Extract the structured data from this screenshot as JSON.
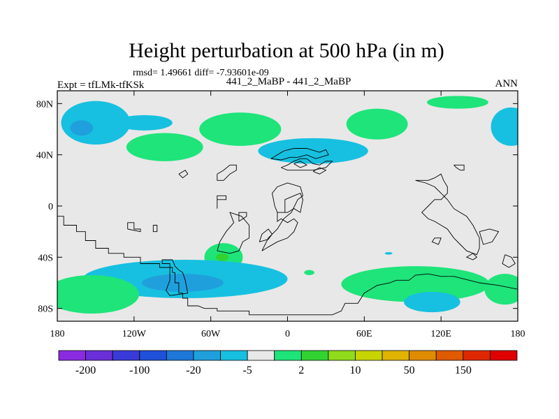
{
  "chart_data": {
    "type": "contour_map",
    "title": "Height perturbation at 500 hPa (in m)",
    "stats": "rmsd= 1.49661 diff= -7.93601e-09",
    "left_label": "Expt = tfLMk-tfKSk",
    "center_label": "441_2_MaBP - 441_2_MaBP",
    "right_label": "ANN",
    "x_ticks": [
      {
        "value": -180,
        "label": "180"
      },
      {
        "value": -120,
        "label": "120W"
      },
      {
        "value": -60,
        "label": "60W"
      },
      {
        "value": 0,
        "label": "0"
      },
      {
        "value": 60,
        "label": "60E"
      },
      {
        "value": 120,
        "label": "120E"
      },
      {
        "value": 180,
        "label": "180"
      }
    ],
    "y_ticks": [
      {
        "value": 80,
        "label": "80N"
      },
      {
        "value": 40,
        "label": "40N"
      },
      {
        "value": 0,
        "label": "0"
      },
      {
        "value": -40,
        "label": "40S"
      },
      {
        "value": -80,
        "label": "80S"
      }
    ],
    "xlim": [
      -180,
      180
    ],
    "ylim": [
      -90,
      90
    ],
    "colorbar": {
      "colors": [
        "#8a2be2",
        "#6a2fd8",
        "#3a3ad8",
        "#1f50d8",
        "#1d78d8",
        "#1fa0dc",
        "#17c0e0",
        "#e8e8e8",
        "#1ee47a",
        "#32d232",
        "#90dc1c",
        "#c8d400",
        "#e0b400",
        "#e08c00",
        "#e05a00",
        "#e02800",
        "#e00000"
      ],
      "labels": [
        "-200",
        "-100",
        "-20",
        "-5",
        "2",
        "10",
        "50",
        "150"
      ]
    },
    "blobs": [
      {
        "lon": -150,
        "lat": 65,
        "rlon": 27,
        "rlat": 17,
        "color": "#17c0e0"
      },
      {
        "lon": -161,
        "lat": 61,
        "rlon": 9,
        "rlat": 6,
        "color": "#1fa0dc"
      },
      {
        "lon": -112,
        "lat": 65,
        "rlon": 22,
        "rlat": 6,
        "color": "#17c0e0"
      },
      {
        "lon": -96,
        "lat": 46,
        "rlon": 30,
        "rlat": 11,
        "color": "#1ee47a"
      },
      {
        "lon": -37,
        "lat": 60,
        "rlon": 32,
        "rlat": 13,
        "color": "#1ee47a"
      },
      {
        "lon": 20,
        "lat": 43,
        "rlon": 43,
        "rlat": 10,
        "color": "#17c0e0"
      },
      {
        "lon": 70,
        "lat": 64,
        "rlon": 24,
        "rlat": 12,
        "color": "#1ee47a"
      },
      {
        "lon": 133,
        "lat": 81,
        "rlon": 24,
        "rlat": 5,
        "color": "#1ee47a"
      },
      {
        "lon": 175,
        "lat": 62,
        "rlon": 16,
        "rlat": 15,
        "color": "#17c0e0"
      },
      {
        "lon": -50,
        "lat": -40,
        "rlon": 15,
        "rlat": 11,
        "color": "#1ee47a"
      },
      {
        "lon": -51,
        "lat": -40,
        "rlon": 5,
        "rlat": 3,
        "color": "#32d232"
      },
      {
        "lon": -80,
        "lat": -57,
        "rlon": 80,
        "rlat": 15,
        "color": "#17c0e0"
      },
      {
        "lon": -82,
        "lat": -60,
        "rlon": 32,
        "rlat": 7,
        "color": "#1fa0dc"
      },
      {
        "lon": -153,
        "lat": -69,
        "rlon": 37,
        "rlat": 15,
        "color": "#1ee47a"
      },
      {
        "lon": 100,
        "lat": -61,
        "rlon": 58,
        "rlat": 14,
        "color": "#1ee47a"
      },
      {
        "lon": 113,
        "lat": -75,
        "rlon": 22,
        "rlat": 8,
        "color": "#17c0e0"
      },
      {
        "lon": 170,
        "lat": -65,
        "rlon": 16,
        "rlat": 12,
        "color": "#1ee47a"
      },
      {
        "lon": 17,
        "lat": -52,
        "rlon": 4,
        "rlat": 2,
        "color": "#1ee47a"
      },
      {
        "lon": 79,
        "lat": -37,
        "rlon": 3,
        "rlat": 1,
        "color": "#17c0e0"
      }
    ],
    "coastlines": [
      [
        [
          -180,
          -8
        ],
        [
          -175,
          -8
        ],
        [
          -175,
          -15
        ],
        [
          -165,
          -15
        ],
        [
          -165,
          -20
        ],
        [
          -158,
          -20
        ],
        [
          -158,
          -27
        ],
        [
          -150,
          -27
        ],
        [
          -150,
          -33
        ],
        [
          -140,
          -33
        ],
        [
          -140,
          -37
        ],
        [
          -128,
          -37
        ],
        [
          -128,
          -40
        ],
        [
          -115,
          -40
        ],
        [
          -115,
          -45
        ],
        [
          -100,
          -45
        ],
        [
          -100,
          -48
        ],
        [
          -90,
          -48
        ],
        [
          -90,
          -52
        ],
        [
          -88,
          -52
        ],
        [
          -88,
          -60
        ],
        [
          -85,
          -60
        ],
        [
          -85,
          -68
        ],
        [
          -82,
          -68
        ],
        [
          -82,
          -72
        ],
        [
          -78,
          -72
        ],
        [
          -78,
          -78
        ],
        [
          -70,
          -78
        ],
        [
          -65,
          -80
        ],
        [
          -55,
          -80
        ],
        [
          -55,
          -82
        ],
        [
          -30,
          -82
        ],
        [
          -30,
          -85
        ],
        [
          35,
          -85
        ],
        [
          42,
          -82
        ],
        [
          45,
          -76
        ],
        [
          55,
          -76
        ],
        [
          60,
          -68
        ],
        [
          70,
          -62
        ],
        [
          80,
          -60
        ],
        [
          85,
          -58
        ],
        [
          95,
          -58
        ],
        [
          100,
          -54
        ],
        [
          110,
          -53
        ],
        [
          120,
          -55
        ],
        [
          130,
          -55
        ],
        [
          142,
          -58
        ],
        [
          150,
          -60
        ],
        [
          165,
          -62
        ],
        [
          180,
          -65
        ]
      ],
      [
        [
          -92,
          -58
        ],
        [
          -92,
          -45
        ],
        [
          -98,
          -45
        ],
        [
          -98,
          -42
        ],
        [
          -90,
          -42
        ],
        [
          -88,
          -47
        ],
        [
          -85,
          -50
        ],
        [
          -82,
          -52
        ],
        [
          -80,
          -58
        ],
        [
          -78,
          -68
        ],
        [
          -92,
          -70
        ],
        [
          -95,
          -66
        ],
        [
          -92,
          -58
        ]
      ],
      [
        [
          -125,
          -18
        ],
        [
          -125,
          -13
        ],
        [
          -120,
          -13
        ],
        [
          -120,
          -18
        ],
        [
          -115,
          -18
        ],
        [
          -115,
          -20
        ],
        [
          -125,
          -18
        ]
      ],
      [
        [
          -105,
          -15
        ],
        [
          -102,
          -15
        ],
        [
          -102,
          -20
        ],
        [
          -105,
          -20
        ],
        [
          -105,
          -15
        ]
      ],
      [
        [
          -55,
          -35
        ],
        [
          -45,
          -37
        ],
        [
          -38,
          -35
        ],
        [
          -35,
          -28
        ],
        [
          -30,
          -25
        ],
        [
          -30,
          -15
        ],
        [
          -36,
          -8
        ],
        [
          -45,
          -5
        ],
        [
          -42,
          -13
        ],
        [
          -48,
          -20
        ],
        [
          -53,
          -28
        ],
        [
          -55,
          -35
        ]
      ],
      [
        [
          -38,
          -12
        ],
        [
          -32,
          -8
        ],
        [
          -32,
          -5
        ],
        [
          -38,
          -5
        ],
        [
          -38,
          -12
        ]
      ],
      [
        [
          -55,
          -2
        ],
        [
          -55,
          5
        ],
        [
          -48,
          5
        ],
        [
          -48,
          8
        ],
        [
          -55,
          8
        ],
        [
          -55,
          -2
        ]
      ],
      [
        [
          -20,
          -35
        ],
        [
          -15,
          -32
        ],
        [
          -8,
          -28
        ],
        [
          0,
          -25
        ],
        [
          5,
          -20
        ],
        [
          8,
          -13
        ],
        [
          5,
          -10
        ],
        [
          0,
          -13
        ],
        [
          -5,
          -10
        ],
        [
          -8,
          -12
        ],
        [
          -8,
          -5
        ],
        [
          -2,
          -5
        ],
        [
          -2,
          5
        ],
        [
          5,
          8
        ],
        [
          10,
          10
        ],
        [
          12,
          5
        ],
        [
          10,
          -5
        ],
        [
          5,
          -2
        ],
        [
          0,
          -5
        ],
        [
          -8,
          -5
        ],
        [
          -10,
          0
        ],
        [
          -12,
          10
        ],
        [
          -8,
          15
        ],
        [
          0,
          18
        ],
        [
          10,
          15
        ],
        [
          12,
          8
        ],
        [
          8,
          5
        ],
        [
          3,
          -5
        ],
        [
          -3,
          -10
        ],
        [
          -8,
          -18
        ],
        [
          -15,
          -25
        ],
        [
          -20,
          -35
        ]
      ],
      [
        [
          -22,
          -28
        ],
        [
          -20,
          -22
        ],
        [
          -15,
          -18
        ],
        [
          -12,
          -22
        ],
        [
          -15,
          -26
        ],
        [
          -22,
          -28
        ]
      ],
      [
        [
          -55,
          25
        ],
        [
          -50,
          28
        ],
        [
          -45,
          32
        ],
        [
          -40,
          32
        ],
        [
          -40,
          28
        ],
        [
          -45,
          25
        ],
        [
          -50,
          20
        ],
        [
          -55,
          20
        ],
        [
          -55,
          25
        ]
      ],
      [
        [
          -5,
          30
        ],
        [
          0,
          32
        ],
        [
          5,
          35
        ],
        [
          10,
          37
        ],
        [
          15,
          37
        ],
        [
          20,
          33
        ],
        [
          25,
          32
        ],
        [
          30,
          35
        ],
        [
          35,
          35
        ],
        [
          30,
          30
        ],
        [
          20,
          28
        ],
        [
          10,
          28
        ],
        [
          0,
          28
        ],
        [
          -5,
          30
        ]
      ],
      [
        [
          5,
          33
        ],
        [
          10,
          35
        ],
        [
          15,
          32
        ],
        [
          10,
          30
        ],
        [
          5,
          33
        ]
      ],
      [
        [
          20,
          27
        ],
        [
          25,
          30
        ],
        [
          30,
          28
        ],
        [
          25,
          25
        ],
        [
          20,
          27
        ]
      ],
      [
        [
          -13,
          37
        ],
        [
          -8,
          40
        ],
        [
          -3,
          43
        ],
        [
          5,
          45
        ],
        [
          15,
          45
        ],
        [
          25,
          42
        ],
        [
          30,
          44
        ],
        [
          32,
          40
        ],
        [
          22,
          37
        ],
        [
          15,
          40
        ],
        [
          8,
          38
        ],
        [
          2,
          38
        ],
        [
          -5,
          36
        ],
        [
          -13,
          37
        ]
      ],
      [
        [
          130,
          32
        ],
        [
          132,
          30
        ],
        [
          135,
          28
        ],
        [
          138,
          28
        ],
        [
          138,
          32
        ],
        [
          135,
          32
        ],
        [
          130,
          32
        ]
      ],
      [
        [
          100,
          20
        ],
        [
          110,
          20
        ],
        [
          115,
          22
        ],
        [
          120,
          25
        ],
        [
          122,
          20
        ],
        [
          125,
          15
        ],
        [
          125,
          10
        ],
        [
          120,
          5
        ],
        [
          115,
          5
        ],
        [
          110,
          0
        ],
        [
          105,
          -5
        ],
        [
          110,
          -10
        ],
        [
          115,
          -12
        ],
        [
          120,
          -15
        ],
        [
          125,
          -18
        ],
        [
          130,
          -25
        ],
        [
          135,
          -30
        ],
        [
          140,
          -35
        ],
        [
          148,
          -38
        ],
        [
          150,
          -33
        ],
        [
          150,
          -25
        ],
        [
          145,
          -15
        ],
        [
          140,
          -8
        ],
        [
          135,
          -5
        ],
        [
          130,
          -2
        ],
        [
          125,
          5
        ],
        [
          120,
          10
        ],
        [
          115,
          15
        ],
        [
          108,
          18
        ],
        [
          100,
          20
        ]
      ],
      [
        [
          145,
          -37
        ],
        [
          148,
          -40
        ],
        [
          145,
          -42
        ],
        [
          140,
          -40
        ],
        [
          145,
          -37
        ]
      ],
      [
        [
          150,
          -20
        ],
        [
          158,
          -18
        ],
        [
          165,
          -20
        ],
        [
          160,
          -28
        ],
        [
          153,
          -30
        ],
        [
          150,
          -20
        ]
      ],
      [
        [
          115,
          -25
        ],
        [
          120,
          -25
        ],
        [
          118,
          -30
        ],
        [
          113,
          -28
        ],
        [
          115,
          -25
        ]
      ],
      [
        [
          170,
          -38
        ],
        [
          175,
          -40
        ],
        [
          178,
          -45
        ],
        [
          173,
          -48
        ],
        [
          168,
          -45
        ],
        [
          170,
          -38
        ]
      ],
      [
        [
          -85,
          25
        ],
        [
          -80,
          28
        ],
        [
          -78,
          25
        ],
        [
          -82,
          22
        ],
        [
          -85,
          25
        ]
      ]
    ]
  }
}
